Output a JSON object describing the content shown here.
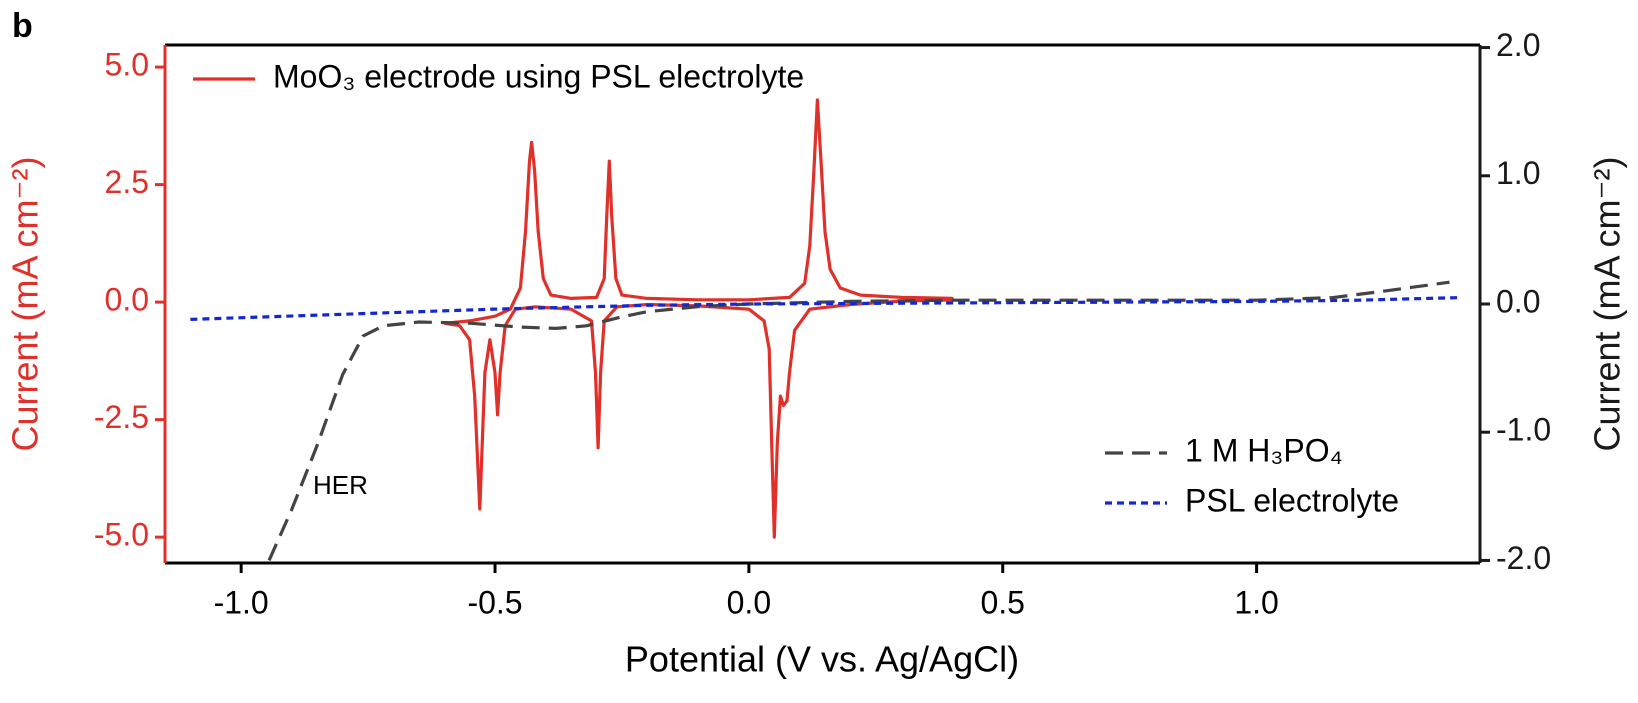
{
  "chart_data": {
    "type": "line",
    "panel_label": "b",
    "x_label": "Potential (V vs. Ag/AgCl)",
    "y_label": "Current (mA cm⁻²)",
    "y2_label": "Current (mA cm⁻²)",
    "y_color": "#e0302a",
    "y2_color": "#1a1a1a",
    "xlim": [
      -1.15,
      1.44
    ],
    "xticks": [
      {
        "value": -1,
        "label": "-1.0"
      },
      {
        "value": -0.5,
        "label": "-0.5"
      },
      {
        "value": 0,
        "label": "0.0"
      },
      {
        "value": 0.5,
        "label": "0.5"
      },
      {
        "value": 1,
        "label": "1.0"
      }
    ],
    "ylim": [
      -5.55,
      5.47
    ],
    "yticks": [
      {
        "value": -5,
        "label": "-5.0"
      },
      {
        "value": -2.5,
        "label": "-2.5"
      },
      {
        "value": 0,
        "label": "0.0"
      },
      {
        "value": 2.5,
        "label": "2.5"
      },
      {
        "value": 5,
        "label": "5.0"
      }
    ],
    "y2lim": [
      -2.02,
      2.02
    ],
    "y2ticks": [
      {
        "value": -2,
        "label": "-2.0"
      },
      {
        "value": -1,
        "label": "-1.0"
      },
      {
        "value": 0,
        "label": "0.0"
      },
      {
        "value": 1,
        "label": "1.0"
      },
      {
        "value": 2,
        "label": "2.0"
      }
    ],
    "annotation": "HER",
    "series": [
      {
        "name": "MoO₃ electrode using PSL electrolyte",
        "color": "#e0302a",
        "dash": "solid",
        "legend": "top-left",
        "x": [
          -0.6,
          -0.55,
          -0.5,
          -0.47,
          -0.45,
          -0.44,
          -0.432,
          -0.428,
          -0.422,
          -0.415,
          -0.405,
          -0.39,
          -0.35,
          -0.3,
          -0.285,
          -0.28,
          -0.275,
          -0.27,
          -0.262,
          -0.25,
          -0.2,
          -0.1,
          0,
          0.08,
          0.11,
          0.12,
          0.128,
          0.135,
          0.142,
          0.15,
          0.16,
          0.18,
          0.22,
          0.3,
          0.4,
          0.4,
          0.3,
          0.2,
          0.12,
          0.09,
          0.08,
          0.075,
          0.068,
          0.062,
          0.056,
          0.05,
          0.045,
          0.04,
          0.03,
          0,
          -0.1,
          -0.2,
          -0.26,
          -0.285,
          -0.292,
          -0.297,
          -0.302,
          -0.31,
          -0.35,
          -0.42,
          -0.46,
          -0.48,
          -0.49,
          -0.495,
          -0.5,
          -0.51,
          -0.52,
          -0.53,
          -0.54,
          -0.55,
          -0.57,
          -0.6
        ],
        "values": [
          -0.45,
          -0.4,
          -0.3,
          -0.15,
          0.3,
          1.5,
          3,
          3.4,
          2.8,
          1.5,
          0.5,
          0.15,
          0.08,
          0.1,
          0.5,
          1.8,
          3,
          1.8,
          0.5,
          0.15,
          0.08,
          0.05,
          0.05,
          0.1,
          0.4,
          1.2,
          2.8,
          4.3,
          3,
          1.5,
          0.7,
          0.3,
          0.15,
          0.1,
          0.08,
          0.05,
          0.02,
          -0.05,
          -0.15,
          -0.6,
          -1.5,
          -2.1,
          -2.2,
          -2,
          -3,
          -5,
          -3,
          -1,
          -0.4,
          -0.15,
          -0.08,
          -0.05,
          -0.1,
          -0.4,
          -1.5,
          -3.1,
          -1.5,
          -0.4,
          -0.15,
          -0.1,
          -0.15,
          -0.5,
          -1.5,
          -2.4,
          -1.5,
          -0.8,
          -1.5,
          -4.4,
          -2,
          -0.8,
          -0.5,
          -0.45
        ]
      },
      {
        "name": "1 M H₃PO₄",
        "color": "#444444",
        "dash": "dashed",
        "axis": "y2",
        "legend": "bottom-right",
        "x": [
          -0.945,
          -0.9,
          -0.85,
          -0.8,
          -0.76,
          -0.72,
          -0.65,
          -0.55,
          -0.45,
          -0.38,
          -0.32,
          -0.25,
          -0.2,
          -0.1,
          0,
          0.2,
          0.4,
          0.8,
          1,
          1.15,
          1.25,
          1.38
        ],
        "values": [
          -2,
          -1.6,
          -1.1,
          -0.55,
          -0.25,
          -0.17,
          -0.14,
          -0.15,
          -0.18,
          -0.19,
          -0.17,
          -0.1,
          -0.06,
          -0.02,
          0,
          0.02,
          0.03,
          0.03,
          0.03,
          0.05,
          0.1,
          0.17
        ]
      },
      {
        "name": "PSL electrolyte",
        "color": "#1428d0",
        "dash": "dotted",
        "axis": "y2",
        "legend": "bottom-right",
        "x": [
          -1.1,
          -0.8,
          -0.5,
          -0.2,
          0,
          0.5,
          1,
          1.2,
          1.3,
          1.4
        ],
        "values": [
          -0.12,
          -0.08,
          -0.04,
          -0.01,
          0,
          0.01,
          0.02,
          0.03,
          0.04,
          0.05
        ]
      }
    ]
  }
}
